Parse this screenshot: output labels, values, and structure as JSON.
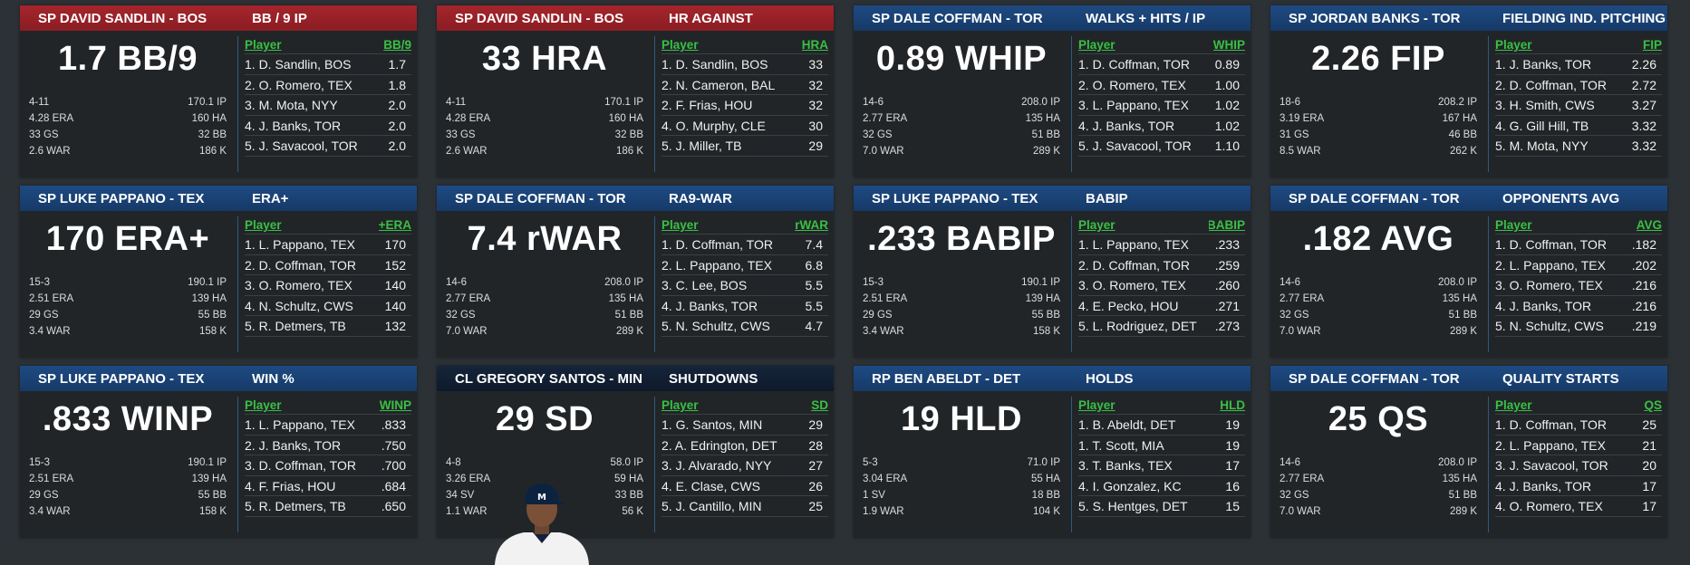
{
  "cards": [
    {
      "header_color": "red",
      "player": "SP DAVID SANDLIN - BOS",
      "stat_name": "BB / 9 IP",
      "big": "1.7 BB/9",
      "summary": [
        [
          "4-11",
          "170.1 IP"
        ],
        [
          "4.28 ERA",
          "160 HA"
        ],
        [
          "33 GS",
          "32 BB"
        ],
        [
          "2.6 WAR",
          "186 K"
        ]
      ],
      "col_player": "Player",
      "col_stat": "BB/9",
      "leaders": [
        [
          "1. D. Sandlin, BOS",
          "1.7"
        ],
        [
          "2. O. Romero, TEX",
          "1.8"
        ],
        [
          "3. M. Mota, NYY",
          "2.0"
        ],
        [
          "4. J. Banks, TOR",
          "2.0"
        ],
        [
          "5. J. Savacool, TOR",
          "2.0"
        ]
      ]
    },
    {
      "header_color": "red",
      "player": "SP DAVID SANDLIN - BOS",
      "stat_name": "HR AGAINST",
      "big": "33 HRA",
      "summary": [
        [
          "4-11",
          "170.1 IP"
        ],
        [
          "4.28 ERA",
          "160 HA"
        ],
        [
          "33 GS",
          "32 BB"
        ],
        [
          "2.6 WAR",
          "186 K"
        ]
      ],
      "col_player": "Player",
      "col_stat": "HRA",
      "leaders": [
        [
          "1. D. Sandlin, BOS",
          "33"
        ],
        [
          "2. N. Cameron, BAL",
          "32"
        ],
        [
          "2. F. Frias, HOU",
          "32"
        ],
        [
          "4. O. Murphy, CLE",
          "30"
        ],
        [
          "5. J. Miller, TB",
          "29"
        ]
      ]
    },
    {
      "header_color": "blue",
      "player": "SP DALE COFFMAN - TOR",
      "stat_name": "WALKS + HITS / IP",
      "big": "0.89 WHIP",
      "summary": [
        [
          "14-6",
          "208.0 IP"
        ],
        [
          "2.77 ERA",
          "135 HA"
        ],
        [
          "32 GS",
          "51 BB"
        ],
        [
          "7.0 WAR",
          "289 K"
        ]
      ],
      "col_player": "Player",
      "col_stat": "WHIP",
      "leaders": [
        [
          "1. D. Coffman, TOR",
          "0.89"
        ],
        [
          "2. O. Romero, TEX",
          "1.00"
        ],
        [
          "3. L. Pappano, TEX",
          "1.02"
        ],
        [
          "4. J. Banks, TOR",
          "1.02"
        ],
        [
          "5. J. Savacool, TOR",
          "1.10"
        ]
      ]
    },
    {
      "header_color": "blue",
      "player": "SP JORDAN BANKS - TOR",
      "stat_name": "FIELDING IND. PITCHING",
      "big": "2.26 FIP",
      "summary": [
        [
          "18-6",
          "208.2 IP"
        ],
        [
          "3.19 ERA",
          "167 HA"
        ],
        [
          "31 GS",
          "46 BB"
        ],
        [
          "8.5 WAR",
          "262 K"
        ]
      ],
      "col_player": "Player",
      "col_stat": "FIP",
      "leaders": [
        [
          "1. J. Banks, TOR",
          "2.26"
        ],
        [
          "2. D. Coffman, TOR",
          "2.72"
        ],
        [
          "3. H. Smith, CWS",
          "3.27"
        ],
        [
          "4. G. Gill Hill, TB",
          "3.32"
        ],
        [
          "5. M. Mota, NYY",
          "3.32"
        ]
      ]
    },
    {
      "header_color": "blue",
      "player": "SP LUKE PAPPANO - TEX",
      "stat_name": "ERA+",
      "big": "170 ERA+",
      "summary": [
        [
          "15-3",
          "190.1 IP"
        ],
        [
          "2.51 ERA",
          "139 HA"
        ],
        [
          "29 GS",
          "55 BB"
        ],
        [
          "3.4 WAR",
          "158 K"
        ]
      ],
      "col_player": "Player",
      "col_stat": "ERA+",
      "leaders": [
        [
          "1. L. Pappano, TEX",
          "170"
        ],
        [
          "2. D. Coffman, TOR",
          "152"
        ],
        [
          "3. O. Romero, TEX",
          "140"
        ],
        [
          "4. N. Schultz, CWS",
          "140"
        ],
        [
          "5. R. Detmers, TB",
          "132"
        ]
      ]
    },
    {
      "header_color": "blue",
      "player": "SP DALE COFFMAN - TOR",
      "stat_name": "RA9-WAR",
      "big": "7.4 rWAR",
      "summary": [
        [
          "14-6",
          "208.0 IP"
        ],
        [
          "2.77 ERA",
          "135 HA"
        ],
        [
          "32 GS",
          "51 BB"
        ],
        [
          "7.0 WAR",
          "289 K"
        ]
      ],
      "col_player": "Player",
      "col_stat": "rWAR",
      "leaders": [
        [
          "1. D. Coffman, TOR",
          "7.4"
        ],
        [
          "2. L. Pappano, TEX",
          "6.8"
        ],
        [
          "3. C. Lee, BOS",
          "5.5"
        ],
        [
          "4. J. Banks, TOR",
          "5.5"
        ],
        [
          "5. N. Schultz, CWS",
          "4.7"
        ]
      ]
    },
    {
      "header_color": "blue",
      "player": "SP LUKE PAPPANO - TEX",
      "stat_name": "BABIP",
      "big": ".233 BABIP",
      "summary": [
        [
          "15-3",
          "190.1 IP"
        ],
        [
          "2.51 ERA",
          "139 HA"
        ],
        [
          "29 GS",
          "55 BB"
        ],
        [
          "3.4 WAR",
          "158 K"
        ]
      ],
      "col_player": "Player",
      "col_stat": "BABIP",
      "leaders": [
        [
          "1. L. Pappano, TEX",
          ".233"
        ],
        [
          "2. D. Coffman, TOR",
          ".259"
        ],
        [
          "3. O. Romero, TEX",
          ".260"
        ],
        [
          "4. E. Pecko, HOU",
          ".271"
        ],
        [
          "5. L. Rodriguez, DET",
          ".273"
        ]
      ]
    },
    {
      "header_color": "blue",
      "player": "SP DALE COFFMAN - TOR",
      "stat_name": "OPPONENTS AVG",
      "big": ".182 AVG",
      "summary": [
        [
          "14-6",
          "208.0 IP"
        ],
        [
          "2.77 ERA",
          "135 HA"
        ],
        [
          "32 GS",
          "51 BB"
        ],
        [
          "7.0 WAR",
          "289 K"
        ]
      ],
      "col_player": "Player",
      "col_stat": "AVG",
      "leaders": [
        [
          "1. D. Coffman, TOR",
          ".182"
        ],
        [
          "2. L. Pappano, TEX",
          ".202"
        ],
        [
          "3. O. Romero, TEX",
          ".216"
        ],
        [
          "4. J. Banks, TOR",
          ".216"
        ],
        [
          "5. N. Schultz, CWS",
          ".219"
        ]
      ]
    },
    {
      "header_color": "blue",
      "player": "SP LUKE PAPPANO - TEX",
      "stat_name": "WIN %",
      "big": ".833 WINP",
      "summary": [
        [
          "15-3",
          "190.1 IP"
        ],
        [
          "2.51 ERA",
          "139 HA"
        ],
        [
          "29 GS",
          "55 BB"
        ],
        [
          "3.4 WAR",
          "158 K"
        ]
      ],
      "col_player": "Player",
      "col_stat": "WINP",
      "leaders": [
        [
          "1. L. Pappano, TEX",
          ".833"
        ],
        [
          "2. J. Banks, TOR",
          ".750"
        ],
        [
          "3. D. Coffman, TOR",
          ".700"
        ],
        [
          "4. F. Frias, HOU",
          ".684"
        ],
        [
          "5. R. Detmers, TB",
          ".650"
        ]
      ]
    },
    {
      "header_color": "navy",
      "player": "CL GREGORY SANTOS - MIN",
      "stat_name": "SHUTDOWNS",
      "big": "29 SD",
      "photo": true,
      "summary": [
        [
          "4-8",
          "58.0 IP"
        ],
        [
          "3.26 ERA",
          "59 HA"
        ],
        [
          "34 SV",
          "33 BB"
        ],
        [
          "1.1 WAR",
          "56 K"
        ]
      ],
      "col_player": "Player",
      "col_stat": "SD",
      "leaders": [
        [
          "1. G. Santos, MIN",
          "29"
        ],
        [
          "2. A. Edrington, DET",
          "28"
        ],
        [
          "3. J. Alvarado, NYY",
          "27"
        ],
        [
          "4. E. Clase, CWS",
          "26"
        ],
        [
          "5. J. Cantillo, MIN",
          "25"
        ]
      ]
    },
    {
      "header_color": "blue",
      "player": "RP BEN ABELDT - DET",
      "stat_name": "HOLDS",
      "big": "19 HLD",
      "summary": [
        [
          "5-3",
          "71.0 IP"
        ],
        [
          "3.04 ERA",
          "55 HA"
        ],
        [
          "1 SV",
          "18 BB"
        ],
        [
          "1.9 WAR",
          "104 K"
        ]
      ],
      "col_player": "Player",
      "col_stat": "HLD",
      "leaders": [
        [
          "1. B. Abeldt, DET",
          "19"
        ],
        [
          "1. T. Scott, MIA",
          "19"
        ],
        [
          "3. T. Banks, TEX",
          "17"
        ],
        [
          "4. I. Gonzalez, KC",
          "16"
        ],
        [
          "5. S. Hentges, DET",
          "15"
        ]
      ]
    },
    {
      "header_color": "blue",
      "player": "SP DALE COFFMAN - TOR",
      "stat_name": "QUALITY STARTS",
      "big": "25 QS",
      "summary": [
        [
          "14-6",
          "208.0 IP"
        ],
        [
          "2.77 ERA",
          "135 HA"
        ],
        [
          "32 GS",
          "51 BB"
        ],
        [
          "7.0 WAR",
          "289 K"
        ]
      ],
      "col_player": "Player",
      "col_stat": "QS",
      "leaders": [
        [
          "1. D. Coffman, TOR",
          "25"
        ],
        [
          "2. L. Pappano, TEX",
          "21"
        ],
        [
          "3. J. Savacool, TOR",
          "20"
        ],
        [
          "4. J. Banks, TOR",
          "17"
        ],
        [
          "4. O. Romero, TEX",
          "17"
        ]
      ]
    }
  ]
}
